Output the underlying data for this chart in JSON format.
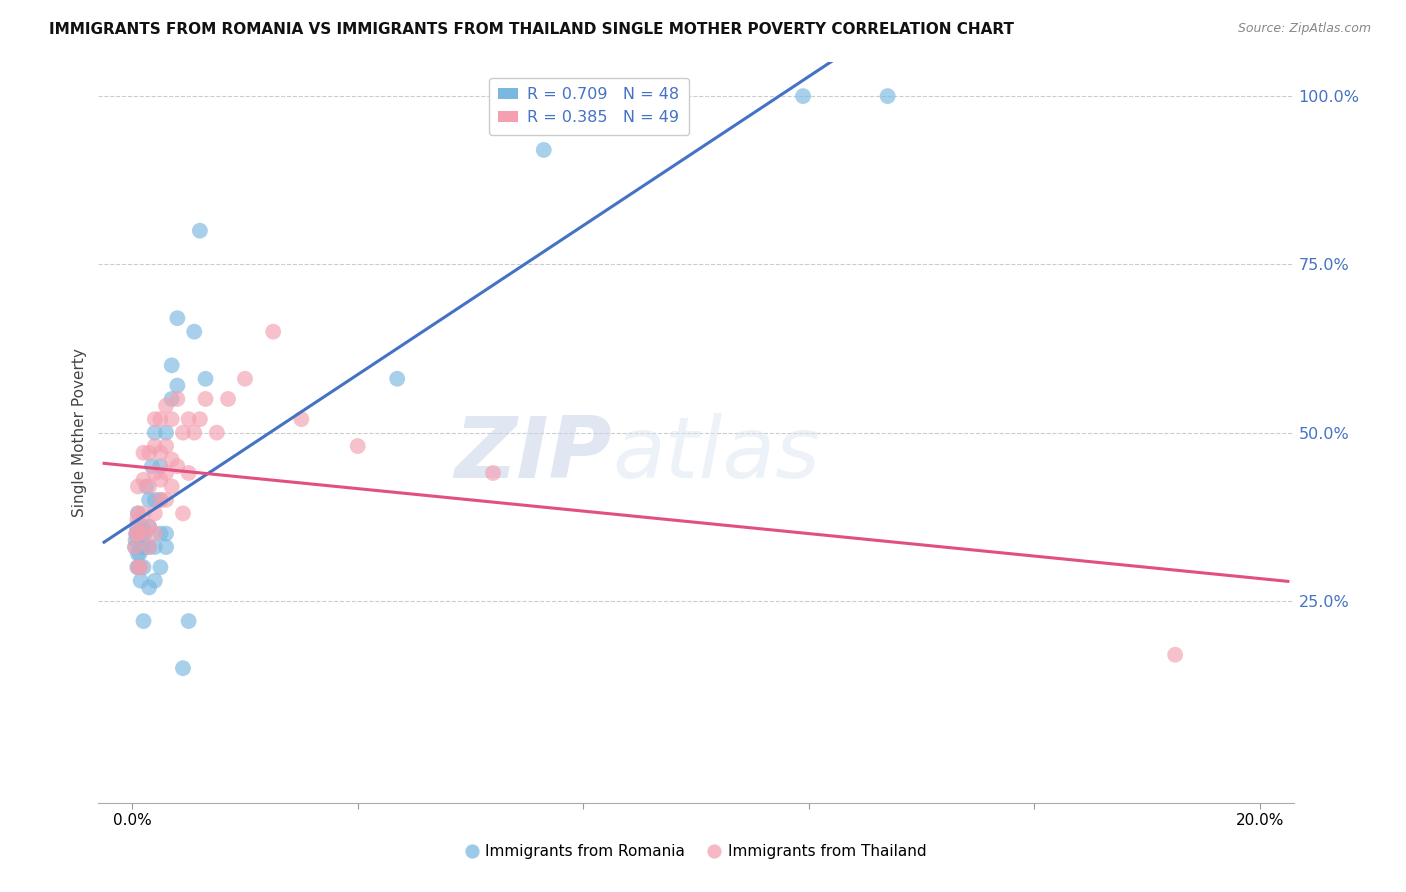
{
  "title": "IMMIGRANTS FROM ROMANIA VS IMMIGRANTS FROM THAILAND SINGLE MOTHER POVERTY CORRELATION CHART",
  "source": "Source: ZipAtlas.com",
  "ylabel": "Single Mother Poverty",
  "xmin": 0.0,
  "xmax": 0.2,
  "ymin": -0.05,
  "ymax": 1.05,
  "yticks": [
    0.25,
    0.5,
    0.75,
    1.0
  ],
  "ytick_labels": [
    "25.0%",
    "50.0%",
    "75.0%",
    "100.0%"
  ],
  "xticks": [
    0.0,
    0.04,
    0.08,
    0.12,
    0.16,
    0.2
  ],
  "xtick_labels": [
    "0.0%",
    "",
    "",
    "",
    "",
    "20.0%"
  ],
  "romania_R": 0.709,
  "romania_N": 48,
  "thailand_R": 0.385,
  "thailand_N": 49,
  "romania_color": "#7ab8e0",
  "thailand_color": "#f4a0b0",
  "romania_line_color": "#4472c4",
  "thailand_line_color": "#e05080",
  "watermark_zip": "ZIP",
  "watermark_atlas": "atlas",
  "background_color": "#ffffff",
  "romania_x": [
    0.0005,
    0.0006,
    0.0007,
    0.0008,
    0.0009,
    0.001,
    0.001,
    0.001,
    0.0012,
    0.0013,
    0.0015,
    0.0016,
    0.0017,
    0.0018,
    0.002,
    0.002,
    0.002,
    0.0022,
    0.0025,
    0.003,
    0.003,
    0.003,
    0.003,
    0.0035,
    0.004,
    0.004,
    0.004,
    0.004,
    0.005,
    0.005,
    0.005,
    0.005,
    0.006,
    0.006,
    0.006,
    0.007,
    0.007,
    0.008,
    0.008,
    0.009,
    0.01,
    0.011,
    0.012,
    0.013,
    0.047,
    0.073,
    0.119,
    0.134
  ],
  "romania_y": [
    0.33,
    0.34,
    0.35,
    0.36,
    0.3,
    0.32,
    0.35,
    0.38,
    0.3,
    0.32,
    0.28,
    0.33,
    0.35,
    0.36,
    0.22,
    0.3,
    0.33,
    0.35,
    0.42,
    0.27,
    0.33,
    0.36,
    0.4,
    0.45,
    0.28,
    0.33,
    0.4,
    0.5,
    0.3,
    0.35,
    0.4,
    0.45,
    0.33,
    0.35,
    0.5,
    0.55,
    0.6,
    0.57,
    0.67,
    0.15,
    0.22,
    0.65,
    0.8,
    0.58,
    0.58,
    0.92,
    1.0,
    1.0
  ],
  "thailand_x": [
    0.0005,
    0.0007,
    0.0009,
    0.001,
    0.001,
    0.001,
    0.001,
    0.0015,
    0.002,
    0.002,
    0.002,
    0.002,
    0.003,
    0.003,
    0.003,
    0.003,
    0.004,
    0.004,
    0.004,
    0.004,
    0.004,
    0.005,
    0.005,
    0.005,
    0.005,
    0.006,
    0.006,
    0.006,
    0.006,
    0.007,
    0.007,
    0.007,
    0.008,
    0.008,
    0.009,
    0.009,
    0.01,
    0.01,
    0.011,
    0.012,
    0.013,
    0.015,
    0.017,
    0.02,
    0.025,
    0.03,
    0.04,
    0.064,
    0.185
  ],
  "thailand_y": [
    0.33,
    0.35,
    0.37,
    0.3,
    0.35,
    0.38,
    0.42,
    0.3,
    0.35,
    0.38,
    0.43,
    0.47,
    0.33,
    0.36,
    0.42,
    0.47,
    0.35,
    0.38,
    0.44,
    0.48,
    0.52,
    0.4,
    0.43,
    0.47,
    0.52,
    0.4,
    0.44,
    0.48,
    0.54,
    0.42,
    0.46,
    0.52,
    0.45,
    0.55,
    0.38,
    0.5,
    0.44,
    0.52,
    0.5,
    0.52,
    0.55,
    0.5,
    0.55,
    0.58,
    0.65,
    0.52,
    0.48,
    0.44,
    0.17
  ],
  "grid_color": "#cccccc",
  "grid_linestyle": "--"
}
